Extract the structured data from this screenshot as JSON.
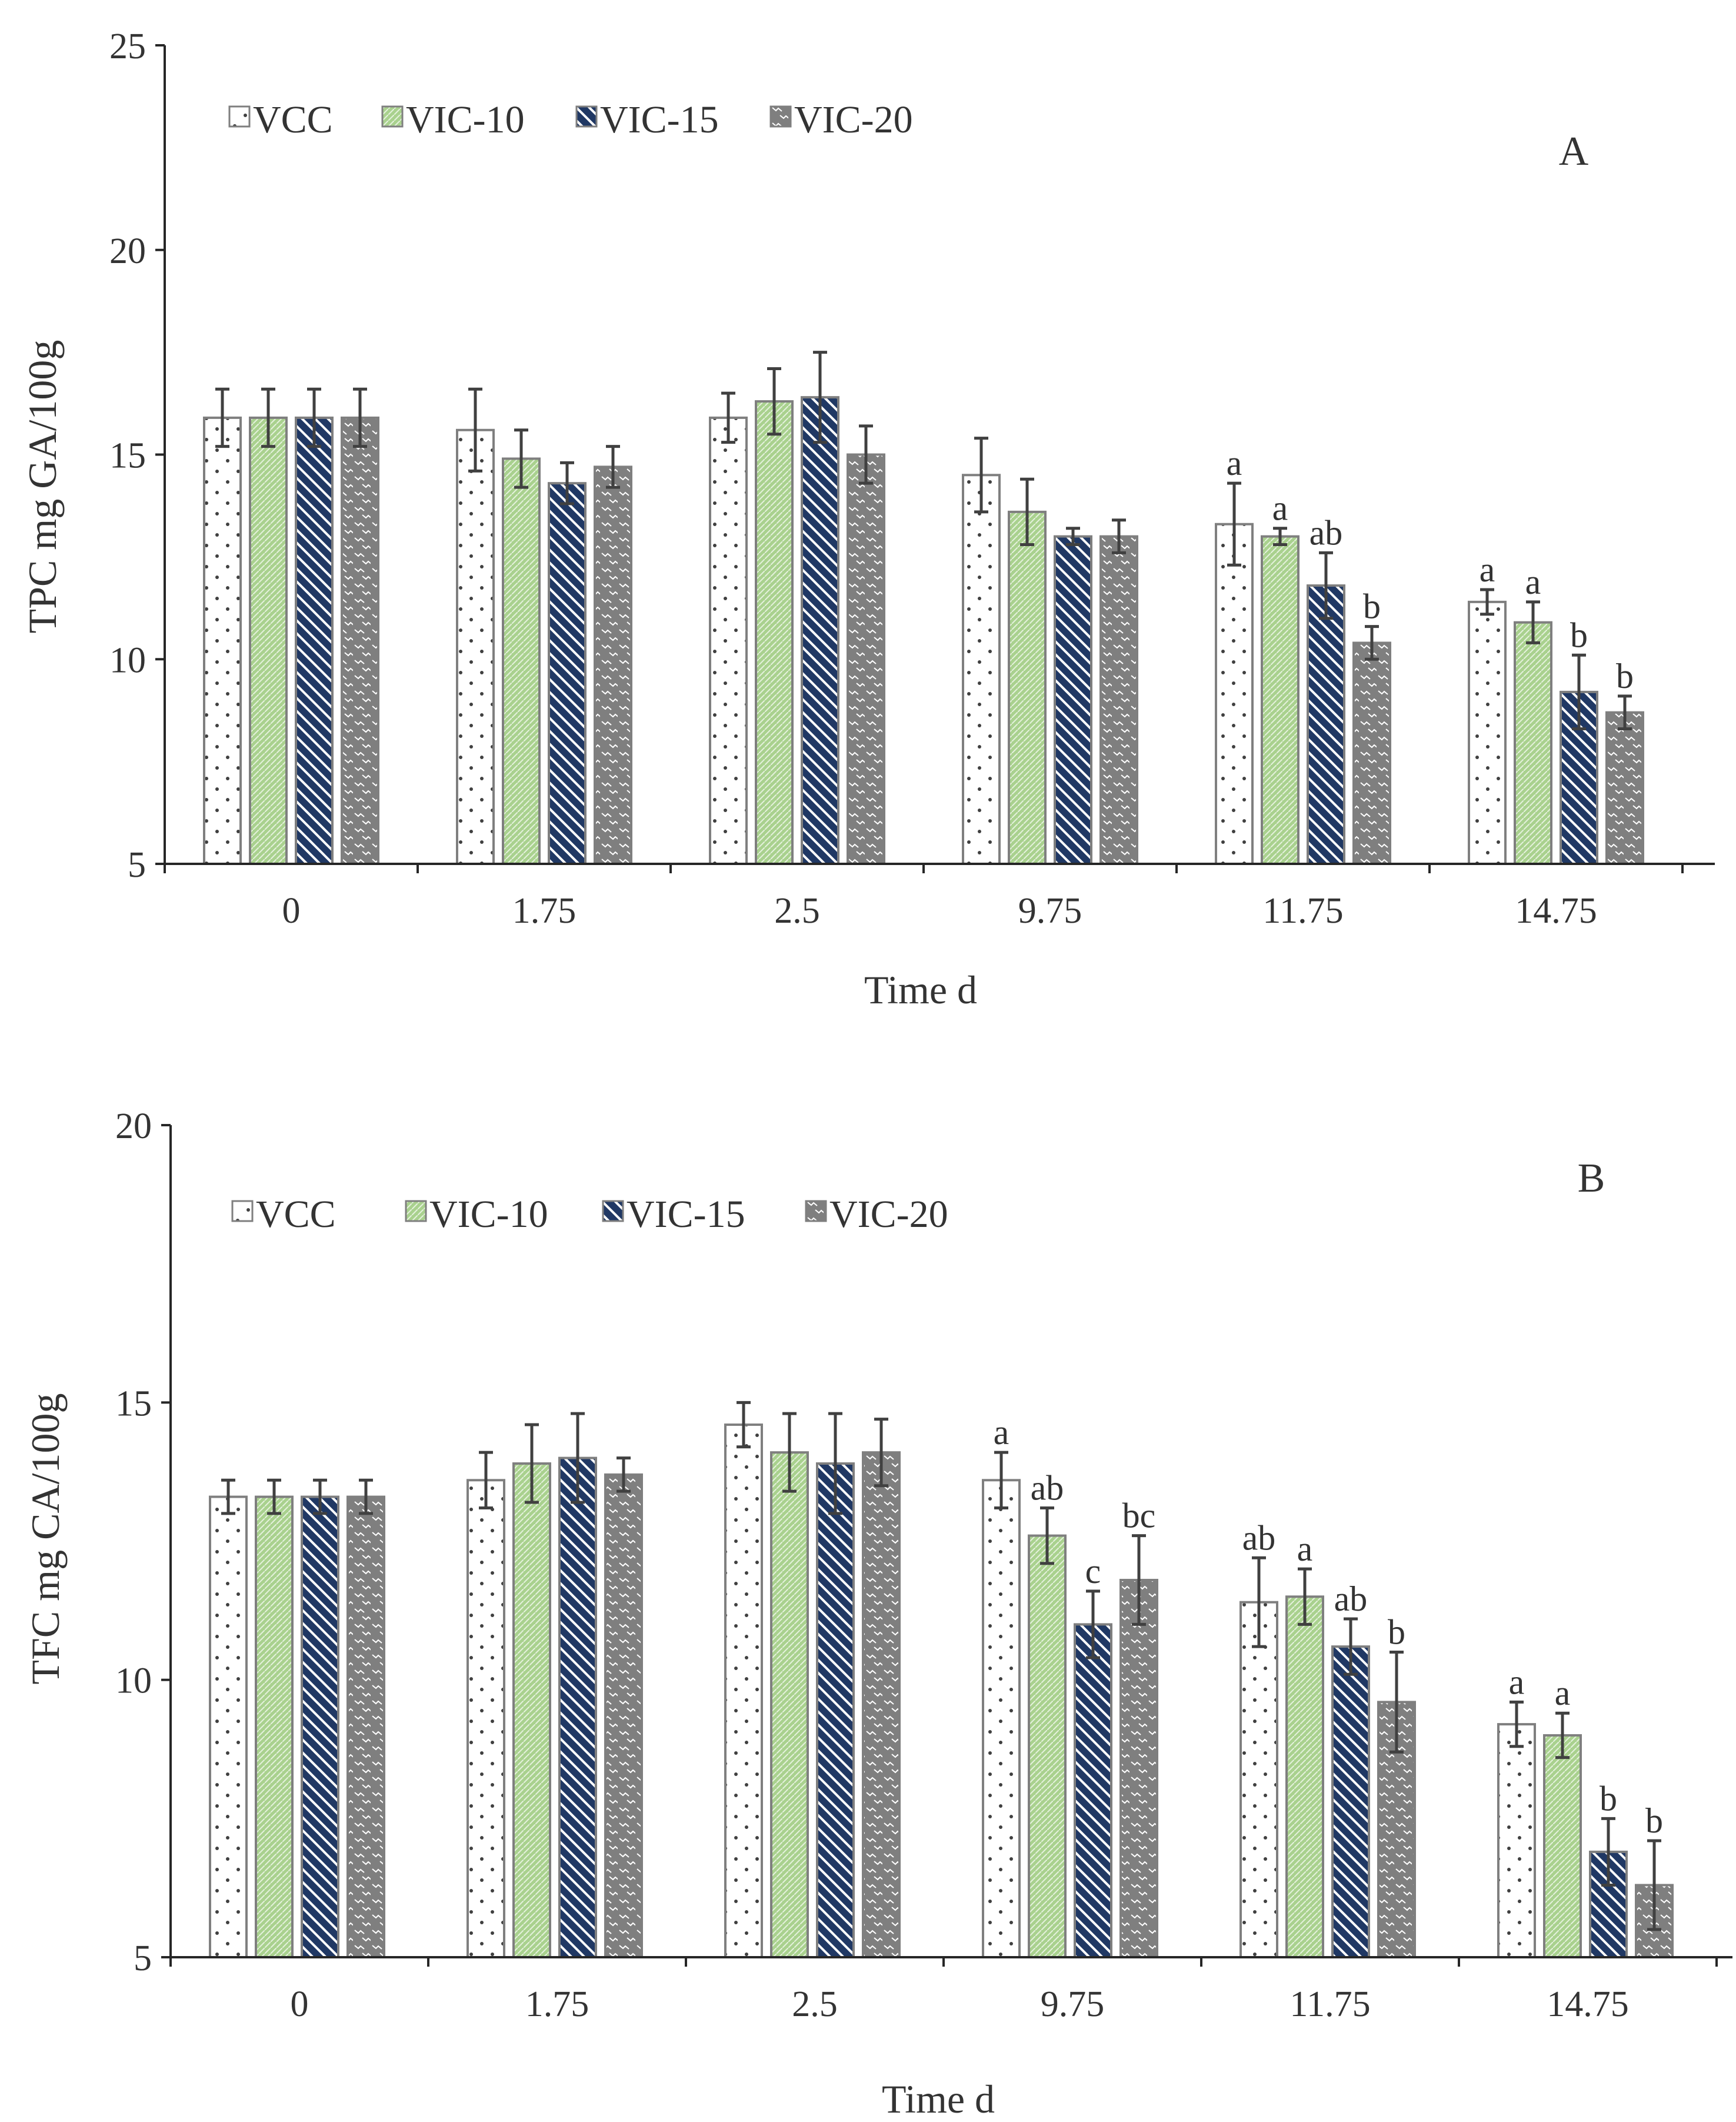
{
  "chart_data": [
    {
      "type": "bar",
      "panel": "A",
      "xlabel": "Time d",
      "ylabel": "TPC mg GA/100g",
      "ylim": [
        5,
        25
      ],
      "yticks": [
        5,
        10,
        15,
        20,
        25
      ],
      "categories": [
        "0",
        "1.75",
        "2.5",
        "9.75",
        "11.75",
        "14.75"
      ],
      "legend_position": "top-left",
      "series": [
        {
          "name": "VCC",
          "values": [
            15.9,
            15.6,
            15.9,
            14.5,
            13.3,
            11.4
          ],
          "errors": [
            0.7,
            1.0,
            0.6,
            0.9,
            1.0,
            0.3
          ],
          "labels": [
            "",
            "",
            "",
            "",
            "a",
            "a"
          ]
        },
        {
          "name": "VIC-10",
          "values": [
            15.9,
            14.9,
            16.3,
            13.6,
            13.0,
            10.9
          ],
          "errors": [
            0.7,
            0.7,
            0.8,
            0.8,
            0.2,
            0.5
          ],
          "labels": [
            "",
            "",
            "",
            "",
            "a",
            "a"
          ]
        },
        {
          "name": "VIC-15",
          "values": [
            15.9,
            14.3,
            16.4,
            13.0,
            11.8,
            9.2
          ],
          "errors": [
            0.7,
            0.5,
            1.1,
            0.2,
            0.8,
            0.9
          ],
          "labels": [
            "",
            "",
            "",
            "",
            "ab",
            "b"
          ]
        },
        {
          "name": "VIC-20",
          "values": [
            15.9,
            14.7,
            15.0,
            13.0,
            10.4,
            8.7
          ],
          "errors": [
            0.7,
            0.5,
            0.7,
            0.4,
            0.4,
            0.4
          ],
          "labels": [
            "",
            "",
            "",
            "",
            "b",
            "b"
          ]
        }
      ]
    },
    {
      "type": "bar",
      "panel": "B",
      "xlabel": "Time d",
      "ylabel": "TFC mg CA/100g",
      "ylim": [
        5,
        20
      ],
      "yticks": [
        5,
        10,
        15,
        20
      ],
      "categories": [
        "0",
        "1.75",
        "2.5",
        "9.75",
        "11.75",
        "14.75"
      ],
      "legend_position": "top-left",
      "series": [
        {
          "name": "VCC",
          "values": [
            13.3,
            13.6,
            14.6,
            13.6,
            11.4,
            9.2
          ],
          "errors": [
            0.3,
            0.5,
            0.4,
            0.5,
            0.8,
            0.4
          ],
          "labels": [
            "",
            "",
            "",
            "a",
            "ab",
            "a"
          ]
        },
        {
          "name": "VIC-10",
          "values": [
            13.3,
            13.9,
            14.1,
            12.6,
            11.5,
            9.0
          ],
          "errors": [
            0.3,
            0.7,
            0.7,
            0.5,
            0.5,
            0.4
          ],
          "labels": [
            "",
            "",
            "",
            "ab",
            "a",
            "a"
          ]
        },
        {
          "name": "VIC-15",
          "values": [
            13.3,
            14.0,
            13.9,
            11.0,
            10.6,
            6.9
          ],
          "errors": [
            0.3,
            0.8,
            0.9,
            0.6,
            0.5,
            0.6
          ],
          "labels": [
            "",
            "",
            "",
            "c",
            "ab",
            "b"
          ]
        },
        {
          "name": "VIC-20",
          "values": [
            13.3,
            13.7,
            14.1,
            11.8,
            9.6,
            6.3
          ],
          "errors": [
            0.3,
            0.3,
            0.6,
            0.8,
            0.9,
            0.8
          ],
          "labels": [
            "",
            "",
            "",
            "bc",
            "b",
            "b"
          ]
        }
      ]
    }
  ],
  "series_styles": [
    {
      "fill": "#ffffff",
      "stroke": "#7f7f7f",
      "pattern": "dots"
    },
    {
      "fill": "#a9d18e",
      "stroke": "#7f7f7f",
      "pattern": "fine-hatch"
    },
    {
      "fill": "#203864",
      "stroke": "#7f7f7f",
      "pattern": "diagonal-stripes"
    },
    {
      "fill": "#7f7f7f",
      "stroke": "#7f7f7f",
      "pattern": "waves"
    }
  ],
  "colors": {
    "axis": "#262626",
    "error_bar": "#404040",
    "text": "#333333"
  }
}
